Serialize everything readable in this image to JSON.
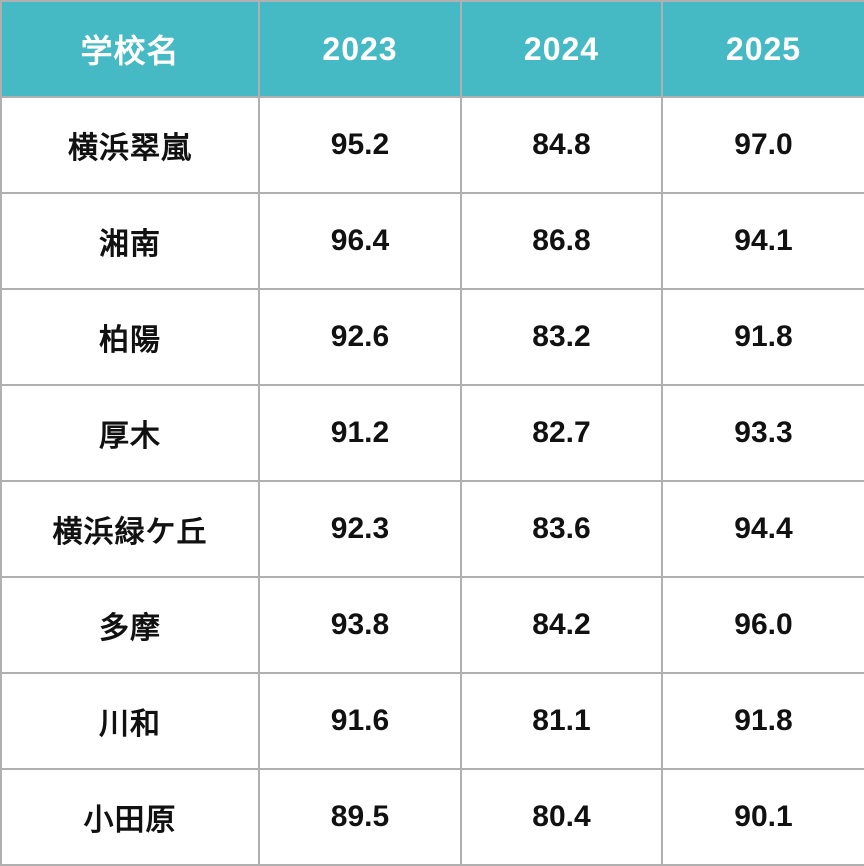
{
  "colors": {
    "header_bg": "#45bac4",
    "header_text": "#ffffff",
    "body_bg": "#ffffff",
    "body_text": "#111111",
    "grid_border": "#b0b0b0"
  },
  "chart_data": {
    "type": "table",
    "columns": [
      "学校名",
      "2023",
      "2024",
      "2025"
    ],
    "rows": [
      {
        "school": "横浜翠嵐",
        "values": [
          95.2,
          84.8,
          97.0
        ]
      },
      {
        "school": "湘南",
        "values": [
          96.4,
          86.8,
          94.1
        ]
      },
      {
        "school": "柏陽",
        "values": [
          92.6,
          83.2,
          91.8
        ]
      },
      {
        "school": "厚木",
        "values": [
          91.2,
          82.7,
          93.3
        ]
      },
      {
        "school": "横浜緑ケ丘",
        "values": [
          92.3,
          83.6,
          94.4
        ]
      },
      {
        "school": "多摩",
        "values": [
          93.8,
          84.2,
          96.0
        ]
      },
      {
        "school": "川和",
        "values": [
          91.6,
          81.1,
          91.8
        ]
      },
      {
        "school": "小田原",
        "values": [
          89.5,
          80.4,
          90.1
        ]
      }
    ]
  }
}
